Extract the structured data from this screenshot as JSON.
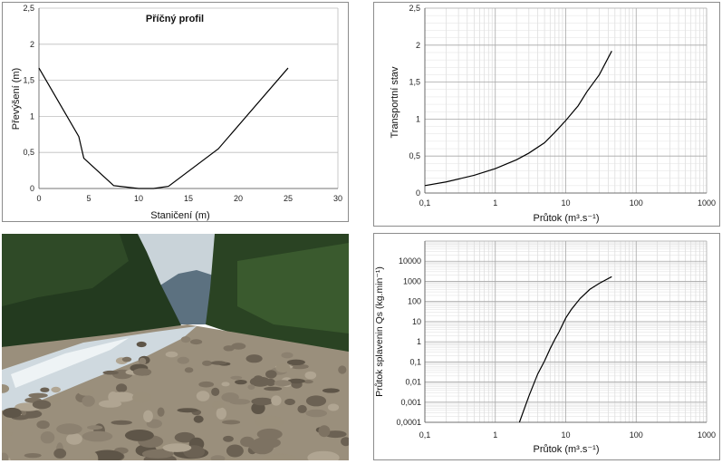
{
  "chart_data": [
    {
      "type": "line",
      "title": "Příčný profil",
      "xlabel": "Staničení (m)",
      "ylabel": "Převýšení (m)",
      "xlim": [
        0,
        30
      ],
      "ylim": [
        0,
        2.5
      ],
      "x_ticks": [
        "0",
        "5",
        "10",
        "15",
        "20",
        "25",
        "30"
      ],
      "y_ticks": [
        "0",
        "0,5",
        "1",
        "1,5",
        "2",
        "2,5"
      ],
      "grid": "horizontal",
      "series": [
        {
          "x": [
            0,
            4,
            4.5,
            7.5,
            10,
            11.5,
            13,
            18,
            25
          ],
          "y": [
            1.67,
            0.72,
            0.42,
            0.04,
            0.0,
            0.0,
            0.03,
            0.55,
            1.67
          ]
        }
      ]
    },
    {
      "type": "line",
      "xlabel": "Průtok (m³.s⁻¹)",
      "ylabel": "Transportní stav",
      "xscale": "log",
      "xlim": [
        0.1,
        1000
      ],
      "ylim": [
        0,
        2.5
      ],
      "x_ticks": [
        "0,1",
        "1",
        "10",
        "100",
        "1000"
      ],
      "y_ticks": [
        "0",
        "0,5",
        "1",
        "1,5",
        "2",
        "2,5"
      ],
      "grid": "both",
      "series": [
        {
          "x": [
            0.1,
            0.2,
            0.5,
            1,
            2,
            3,
            5,
            7,
            10,
            15,
            20,
            30,
            45
          ],
          "y": [
            0.1,
            0.15,
            0.24,
            0.33,
            0.45,
            0.54,
            0.68,
            0.82,
            0.98,
            1.18,
            1.37,
            1.6,
            1.92
          ]
        }
      ]
    },
    {
      "type": "line",
      "xlabel": "Průtok (m³.s⁻¹)",
      "ylabel": "Průtok splavenin Qs (kg.min⁻¹)",
      "xscale": "log",
      "yscale": "log",
      "xlim": [
        0.1,
        1000
      ],
      "ylim": [
        0.0001,
        100000
      ],
      "x_ticks": [
        "0,1",
        "1",
        "10",
        "100",
        "1000"
      ],
      "y_ticks": [
        "0,0001",
        "0,001",
        "0,01",
        "0,1",
        "1",
        "10",
        "100",
        "1000",
        "10000"
      ],
      "grid": "both",
      "series": [
        {
          "x": [
            2.2,
            3,
            4,
            5,
            6,
            7,
            8,
            10,
            12,
            16,
            22,
            30,
            45
          ],
          "y": [
            0.0001,
            0.002,
            0.025,
            0.11,
            0.45,
            1.3,
            3,
            15,
            40,
            140,
            400,
            800,
            1700
          ]
        }
      ]
    }
  ],
  "photo": {
    "sky": "#c9d3d9",
    "mountain": "#5c7180",
    "forest_dark": "#233a1f",
    "forest_mid": "#3a5a2e",
    "water": "#cfd9df",
    "stones": "#857a68"
  }
}
